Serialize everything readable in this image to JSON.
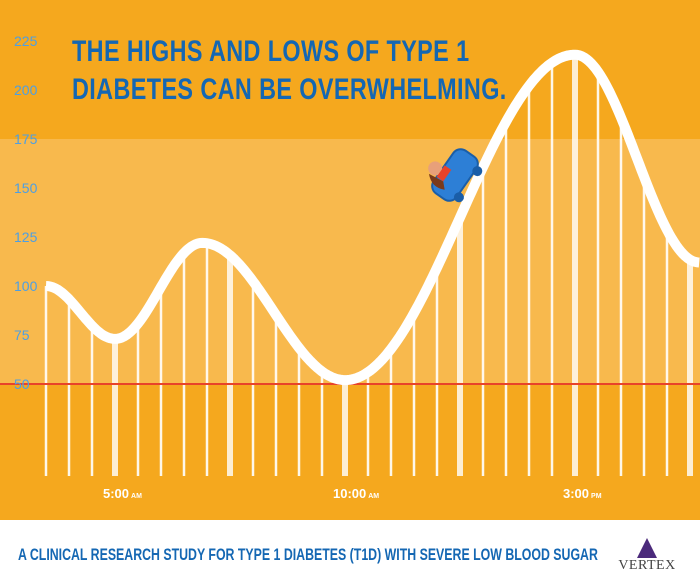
{
  "headline": {
    "line1": "THE HIGHS AND LOWS OF TYPE 1",
    "line2": "DIABETES CAN BE OVERWHELMING."
  },
  "footer": {
    "text": "A CLINICAL RESEARCH STUDY FOR TYPE 1 DIABETES (T1D) WITH SEVERE LOW BLOOD SUGAR",
    "logo": "VERTEX"
  },
  "colors": {
    "background": "#f5a81e",
    "band": "#f8b94d",
    "curve": "#ffffff",
    "threshold": "#e8432a",
    "ytick": "#4d9fe3",
    "title": "#1467b3",
    "logo": "#4b2a7b"
  },
  "chart_data": {
    "type": "line",
    "title": "THE HIGHS AND LOWS OF TYPE 1 DIABETES CAN BE OVERWHELMING.",
    "xlabel": "",
    "ylabel": "",
    "x_unit": "hour of day",
    "x": [
      3.5,
      5,
      6.9,
      10,
      15,
      17.7
    ],
    "y": [
      100,
      73,
      122,
      52,
      218,
      112
    ],
    "xlim": [
      3.5,
      17.7
    ],
    "ylim": [
      0,
      225
    ],
    "yticks": [
      "225",
      "200",
      "175",
      "150",
      "125",
      "100",
      "75",
      "50"
    ],
    "ytick_values": [
      225,
      200,
      175,
      150,
      125,
      100,
      75,
      50
    ],
    "xticks": [
      {
        "value": 5,
        "label": "5:00",
        "suffix": "AM"
      },
      {
        "value": 10,
        "label": "10:00",
        "suffix": "AM"
      },
      {
        "value": 15,
        "label": "3:00",
        "suffix": "PM"
      }
    ],
    "target_band": [
      50,
      175
    ],
    "threshold_line": 50,
    "grid": false,
    "legend": "none"
  }
}
